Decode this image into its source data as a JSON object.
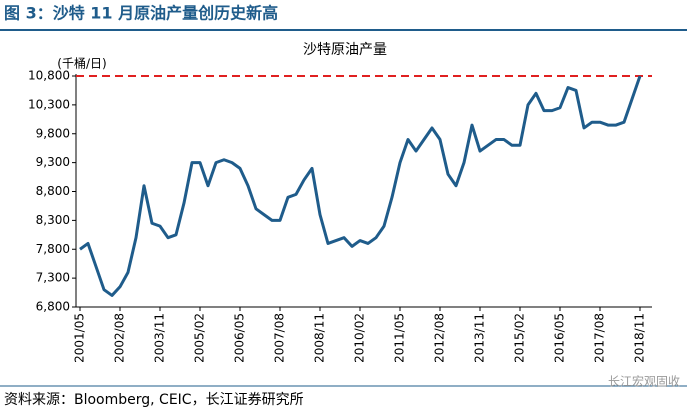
{
  "header": {
    "title": "图 3：沙特 11 月原油产量创历史新高"
  },
  "chart_data": {
    "type": "line",
    "title": "沙特原油产量",
    "y_unit_label": "(千桶/日)",
    "categories": [
      "2001/05",
      null,
      null,
      null,
      null,
      "2002/08",
      null,
      null,
      null,
      null,
      "2003/11",
      null,
      null,
      null,
      null,
      "2005/02",
      null,
      null,
      null,
      null,
      "2006/05",
      null,
      null,
      null,
      null,
      "2007/08",
      null,
      null,
      null,
      null,
      "2008/11",
      null,
      null,
      null,
      null,
      "2010/02",
      null,
      null,
      null,
      null,
      "2011/05",
      null,
      null,
      null,
      null,
      "2012/08",
      null,
      null,
      null,
      null,
      "2013/11",
      null,
      null,
      null,
      null,
      "2015/02",
      null,
      null,
      null,
      null,
      "2016/05",
      null,
      null,
      null,
      null,
      "2017/08",
      null,
      null,
      null,
      null,
      "2018/11"
    ],
    "series": [
      {
        "name": "沙特原油产量",
        "color": "#1f5c8b",
        "values": [
          7800,
          7900,
          7500,
          7100,
          7000,
          7150,
          7400,
          8000,
          8900,
          8250,
          8200,
          8000,
          8050,
          8600,
          9300,
          9300,
          8900,
          9300,
          9350,
          9300,
          9200,
          8900,
          8500,
          8400,
          8300,
          8300,
          8700,
          8750,
          9000,
          9200,
          8400,
          7900,
          7950,
          8000,
          7850,
          7950,
          7900,
          8000,
          8200,
          8700,
          9300,
          9700,
          9500,
          9700,
          9900,
          9700,
          9100,
          8900,
          9300,
          9950,
          9500,
          9600,
          9700,
          9700,
          9600,
          9600,
          10300,
          10500,
          10200,
          10200,
          10250,
          10600,
          10550,
          9900,
          10000,
          10000,
          9950,
          9950,
          10000,
          10400,
          10800
        ]
      }
    ],
    "ylim": [
      6800,
      10800
    ],
    "yticks": [
      {
        "value": 6800,
        "label": "6,800"
      },
      {
        "value": 7300,
        "label": "7,300"
      },
      {
        "value": 7800,
        "label": "7,800"
      },
      {
        "value": 8300,
        "label": "8,300"
      },
      {
        "value": 8800,
        "label": "8,800"
      },
      {
        "value": 9300,
        "label": "9,300"
      },
      {
        "value": 9800,
        "label": "9,800"
      },
      {
        "value": 10300,
        "label": "10,300"
      },
      {
        "value": 10800,
        "label": "10,800"
      }
    ],
    "reference_line": {
      "value": 10800,
      "color": "#e02020"
    },
    "grid": false
  },
  "footer": {
    "source": "资料来源：Bloomberg, CEIC，长江证券研究所",
    "watermark": "长江宏观固收"
  }
}
